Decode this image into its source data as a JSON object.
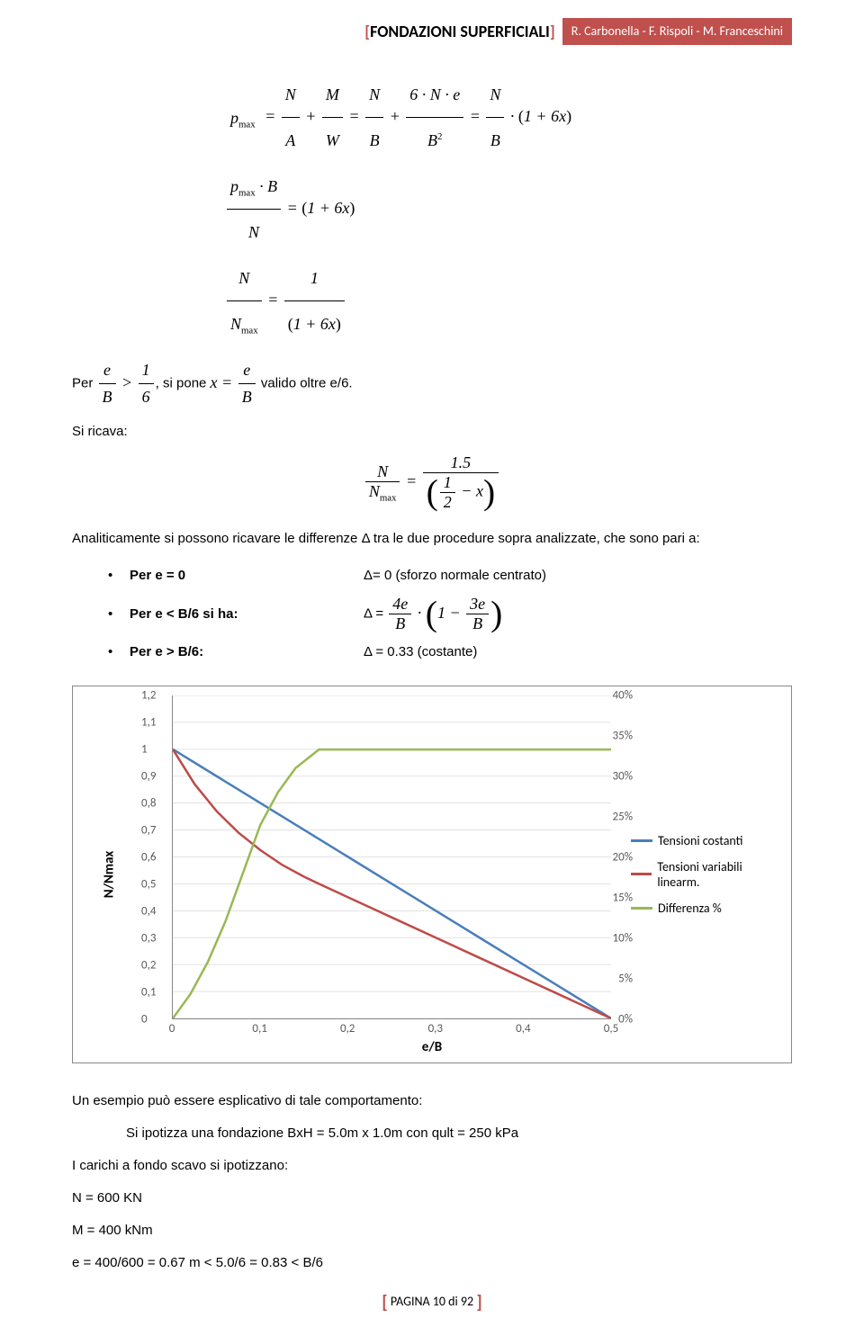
{
  "header": {
    "title_bracket_open": "[",
    "title_text": "FONDAZIONI SUPERFICIALI",
    "title_bracket_close": "]",
    "authors": "R. Carbonella - F. Rispoli - M. Franceschini"
  },
  "math": {
    "eq1_lhs": "p",
    "eq1_sub": "max",
    "eq2_text": "(1 + 6x)",
    "eq3_text": "(1 + 6x)"
  },
  "text1": {
    "per": "Per ",
    "sipone": ", si pone ",
    "valido": " valido oltre e/6."
  },
  "text2": "Si ricava:",
  "eqcenter_val": "1.5",
  "text3": "Analiticamente si possono ricavare le differenze Δ tra le due procedure sopra analizzate, che sono pari a:",
  "bullets": {
    "b1_lhs": "Per e = 0",
    "b1_rhs": "Δ= 0 (sforzo normale centrato)",
    "b2_lhs": "Per e < B/6 si ha:",
    "b2_rhs_pre": "Δ = ",
    "b3_lhs": "Per e > B/6:",
    "b3_rhs": "Δ = 0.33 (costante)"
  },
  "chart": {
    "type": "line",
    "ylabel": "N/Nmax",
    "xlabel": "e/B",
    "background_color": "#ffffff",
    "grid_color": "#d9d9d9",
    "axis_color": "#888888",
    "xlim": [
      0,
      0.5
    ],
    "ylim_left": [
      0,
      1.2
    ],
    "ylim_right": [
      0,
      40
    ],
    "xticks": [
      0,
      0.1,
      0.2,
      0.3,
      0.4,
      0.5
    ],
    "yticks": [
      0,
      0.1,
      0.2,
      0.3,
      0.4,
      0.5,
      0.6,
      0.7,
      0.8,
      0.9,
      1,
      1.1,
      1.2
    ],
    "y2ticks": [
      "0%",
      "5%",
      "10%",
      "15%",
      "20%",
      "25%",
      "30%",
      "35%",
      "40%"
    ],
    "line_width": 2.5,
    "legend_position": "right",
    "series": [
      {
        "name": "Tensioni costanti",
        "color": "#4a7ebb",
        "x": [
          0,
          0.05,
          0.1,
          0.15,
          0.2,
          0.25,
          0.3,
          0.35,
          0.4,
          0.45,
          0.5
        ],
        "y": [
          1.0,
          0.9,
          0.8,
          0.7,
          0.6,
          0.5,
          0.4,
          0.3,
          0.2,
          0.1,
          0.0
        ]
      },
      {
        "name": "Tensioni variabili linearm.",
        "color": "#be4b48",
        "x": [
          0,
          0.025,
          0.05,
          0.075,
          0.1,
          0.125,
          0.15,
          0.1667,
          0.2,
          0.25,
          0.3,
          0.35,
          0.4,
          0.45,
          0.5
        ],
        "y": [
          1.0,
          0.87,
          0.77,
          0.69,
          0.625,
          0.57,
          0.526,
          0.5,
          0.45,
          0.375,
          0.3,
          0.225,
          0.15,
          0.075,
          0.0
        ]
      },
      {
        "name": "Differenza %",
        "color": "#98b954",
        "axis": "right",
        "x": [
          0,
          0.02,
          0.04,
          0.06,
          0.08,
          0.1,
          0.12,
          0.14,
          0.1667,
          0.2,
          0.25,
          0.3,
          0.35,
          0.4,
          0.45,
          0.5
        ],
        "y": [
          0,
          3,
          7,
          12,
          18,
          24,
          28,
          31,
          33.3,
          33.3,
          33.3,
          33.3,
          33.3,
          33.3,
          33.3,
          33.3
        ]
      }
    ]
  },
  "text4": "Un esempio può essere esplicativo di tale comportamento:",
  "text5": "Si ipotizza una fondazione  BxH = 5.0m x 1.0m con  qult = 250 kPa",
  "text6": "I carichi a fondo scavo si ipotizzano:",
  "text7": "N = 600 KN",
  "text8": "M = 400 kNm",
  "text9": "e = 400/600 = 0.67 m < 5.0/6 = 0.83 < B/6",
  "footer": {
    "bracket_open": "[",
    "text": "PAGINA 10 di 92",
    "bracket_close": "]"
  }
}
